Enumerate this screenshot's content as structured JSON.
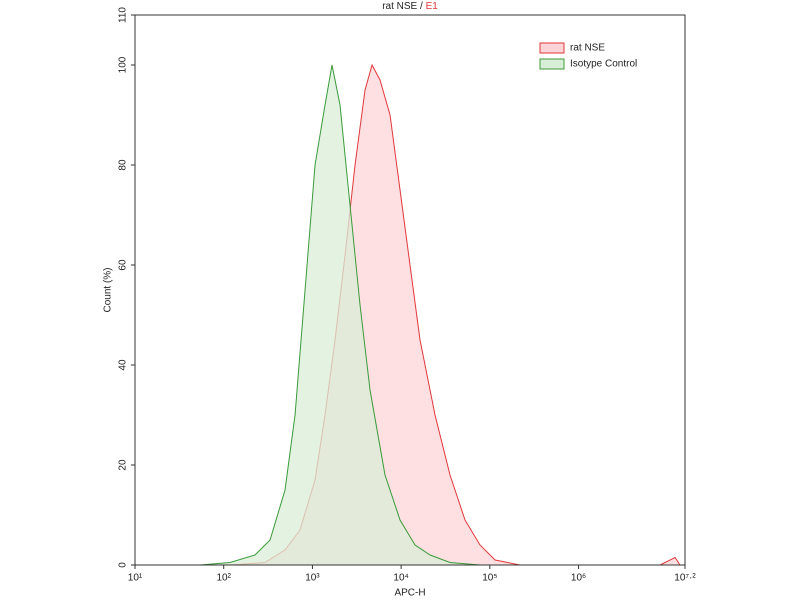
{
  "chart_data": {
    "type": "histogram-overlay",
    "title": "rat NSE /",
    "title_highlight": "E1",
    "x_label": "APC-H",
    "y_label": "Count (%)",
    "x_log": true,
    "xlim": [
      10,
      15848932
    ],
    "ylim": [
      0,
      110
    ],
    "xticks": [
      {
        "value": 10,
        "label": "10¹"
      },
      {
        "value": 100,
        "label": "10²"
      },
      {
        "value": 1000,
        "label": "10³"
      },
      {
        "value": 10000,
        "label": "10⁴"
      },
      {
        "value": 100000,
        "label": "10⁵"
      },
      {
        "value": 1000000,
        "label": "10⁶"
      },
      {
        "value": 15848932,
        "label": "10⁷·²"
      }
    ],
    "yticks": [
      0,
      20,
      40,
      60,
      80,
      100,
      110
    ],
    "series": [
      {
        "name": "rat NSE",
        "color": "#e0383b",
        "fill": "#fdd5d8",
        "x": [
          118,
          292,
          491,
          724,
          1070,
          1387,
          1799,
          2333,
          3023,
          3919,
          4700,
          5780,
          7500,
          9720,
          12590,
          16330,
          24100,
          35560,
          52500,
          77500,
          114600,
          219300,
          8300000,
          12250000,
          13930000
        ],
        "values": [
          0,
          0.5,
          3,
          7,
          17,
          30,
          45,
          62,
          80,
          95,
          100,
          97,
          90,
          75,
          60,
          45,
          30,
          18,
          9,
          4,
          1,
          0,
          0,
          1.5,
          0
        ]
      },
      {
        "name": "Isotype Control",
        "color": "#3a9a3a",
        "fill": "#d9eed7",
        "x": [
          54,
          118,
          225,
          333,
          491,
          637,
          826,
          1070,
          1387,
          1663,
          2047,
          2653,
          3441,
          4460,
          6580,
          9720,
          14350,
          21190,
          35560,
          77500,
          8300000
        ],
        "values": [
          0,
          0.5,
          2,
          5,
          15,
          30,
          55,
          80,
          92,
          100,
          92,
          72,
          52,
          35,
          18,
          9,
          4,
          2,
          0.5,
          0,
          0
        ]
      }
    ],
    "legend_position": "upper right"
  }
}
